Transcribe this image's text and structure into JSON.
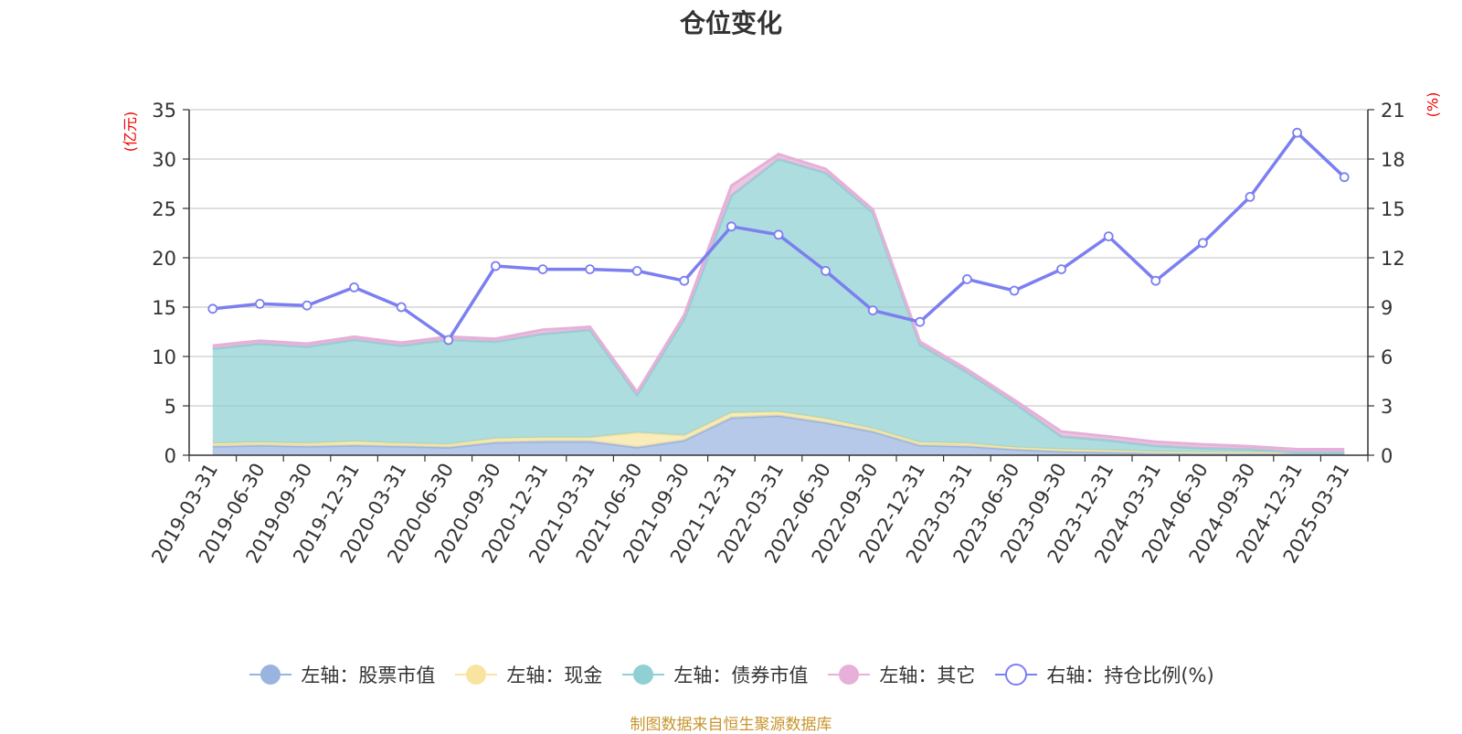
{
  "chart_title": "仓位变化",
  "source_text": "制图数据来自恒生聚源数据库",
  "left_axis_label": "(亿元)",
  "right_axis_label": "(%)",
  "chart_data": {
    "type": "area",
    "title": "仓位变化",
    "categories": [
      "2019-03-31",
      "2019-06-30",
      "2019-09-30",
      "2019-12-31",
      "2020-03-31",
      "2020-06-30",
      "2020-09-30",
      "2020-12-31",
      "2021-03-31",
      "2021-06-30",
      "2021-09-30",
      "2021-12-31",
      "2022-03-31",
      "2022-06-30",
      "2022-09-30",
      "2022-12-31",
      "2023-03-31",
      "2023-06-30",
      "2023-09-30",
      "2023-12-31",
      "2024-03-31",
      "2024-06-30",
      "2024-09-30",
      "2024-12-31",
      "2025-03-31"
    ],
    "left_axis": {
      "label": "(亿元)",
      "min": 0,
      "max": 35,
      "ticks": [
        0,
        5,
        10,
        15,
        20,
        25,
        30,
        35
      ]
    },
    "right_axis": {
      "label": "(%)",
      "min": 0,
      "max": 21,
      "ticks": [
        0,
        3,
        6,
        9,
        12,
        15,
        18,
        21
      ]
    },
    "stacked_area_series": [
      {
        "name": "左轴：股票市值",
        "color": "#9ab4e0",
        "values": [
          0.9,
          1.0,
          0.9,
          1.0,
          0.9,
          0.8,
          1.3,
          1.4,
          1.4,
          0.8,
          1.5,
          3.8,
          4.0,
          3.3,
          2.4,
          1.0,
          0.9,
          0.6,
          0.4,
          0.3,
          0.25,
          0.2,
          0.2,
          0.2,
          0.2
        ]
      },
      {
        "name": "左轴：现金",
        "color": "#f8e4a0",
        "values": [
          0.3,
          0.3,
          0.3,
          0.4,
          0.3,
          0.3,
          0.4,
          0.4,
          0.4,
          1.5,
          0.5,
          0.5,
          0.4,
          0.4,
          0.3,
          0.3,
          0.3,
          0.2,
          0.2,
          0.2,
          0.1,
          0.1,
          0.1,
          0.1,
          0.1
        ]
      },
      {
        "name": "左轴：债券市值",
        "color": "#8fd0d2",
        "values": [
          9.6,
          10.0,
          9.8,
          10.3,
          9.9,
          10.6,
          9.8,
          10.5,
          10.9,
          3.8,
          11.8,
          22.0,
          25.6,
          24.9,
          21.9,
          9.9,
          7.2,
          4.5,
          1.3,
          1.0,
          0.6,
          0.4,
          0.3,
          0.0,
          0.0
        ]
      },
      {
        "name": "左轴：其它",
        "color": "#e6b0d8",
        "values": [
          0.3,
          0.3,
          0.3,
          0.3,
          0.3,
          0.3,
          0.3,
          0.4,
          0.3,
          0.3,
          0.4,
          1.0,
          0.5,
          0.4,
          0.3,
          0.3,
          0.3,
          0.3,
          0.5,
          0.4,
          0.4,
          0.4,
          0.3,
          0.3,
          0.3
        ]
      }
    ],
    "line_series": {
      "name": "右轴：持仓比例(%)",
      "color": "#7b7ff0",
      "values": [
        8.9,
        9.2,
        9.1,
        10.2,
        9.0,
        7.0,
        11.5,
        11.3,
        11.3,
        11.2,
        10.6,
        13.9,
        13.4,
        11.2,
        8.8,
        8.1,
        10.7,
        10.0,
        11.3,
        13.3,
        10.6,
        12.9,
        15.7,
        19.6,
        16.9
      ]
    },
    "legend": [
      {
        "label": "左轴：股票市值",
        "color": "#9ab4e0",
        "style": "filled"
      },
      {
        "label": "左轴：现金",
        "color": "#f8e4a0",
        "style": "filled"
      },
      {
        "label": "左轴：债券市值",
        "color": "#8fd0d2",
        "style": "filled"
      },
      {
        "label": "左轴：其它",
        "color": "#e6b0d8",
        "style": "filled"
      },
      {
        "label": "右轴：持仓比例(%)",
        "color": "#7b7ff0",
        "style": "hollow"
      }
    ],
    "legend_position": "bottom-center",
    "grid": true
  }
}
